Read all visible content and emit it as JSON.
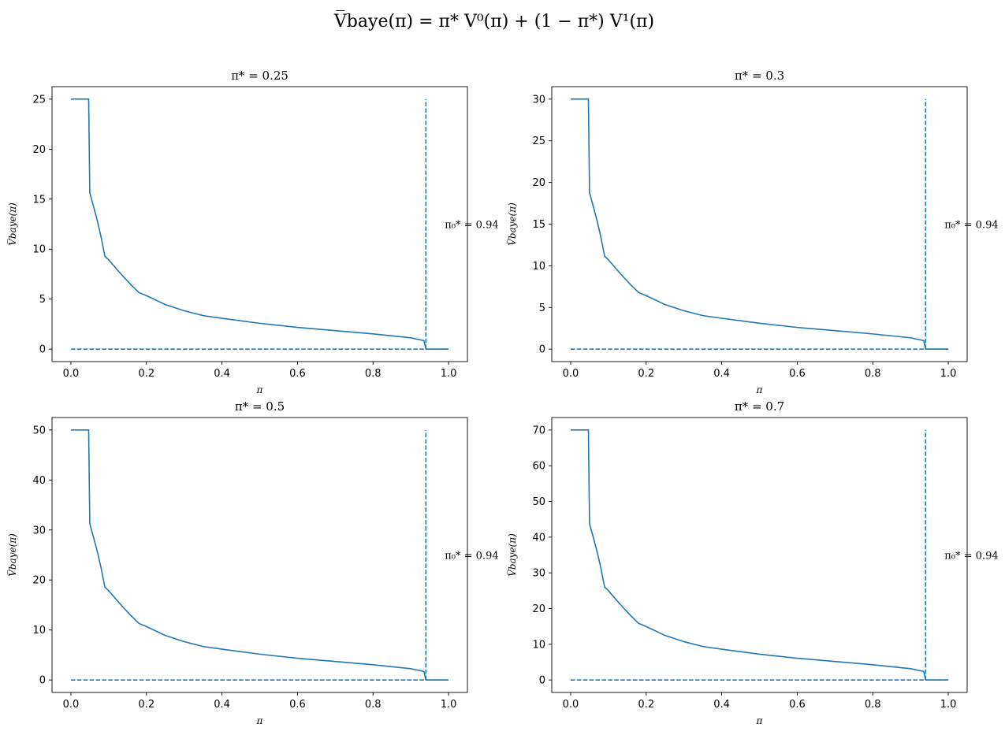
{
  "figure": {
    "title": "V̅baye(π) = π* V⁰(π) + (1 − π*) V¹(π)",
    "color": "#1f77b4"
  },
  "chart_data": [
    {
      "type": "line",
      "title": "π* = 0.25",
      "xlabel": "π",
      "ylabel": "V̅baye(π)",
      "xlim": [
        -0.05,
        1.05
      ],
      "ylim": [
        -1.25,
        26.25
      ],
      "xticks": [
        0.0,
        0.2,
        0.4,
        0.6,
        0.8,
        1.0
      ],
      "xtick_labels": [
        "0.0",
        "0.2",
        "0.4",
        "0.6",
        "0.8",
        "1.0"
      ],
      "yticks": [
        0,
        5,
        10,
        15,
        20,
        25
      ],
      "ytick_labels": [
        "0",
        "5",
        "10",
        "15",
        "20",
        "25"
      ],
      "annotation": {
        "text": "π₀* = 0.94",
        "x": 0.99,
        "y": 12.5
      },
      "series": [
        {
          "style": "solid",
          "x": [
            0.0,
            0.047,
            0.05,
            0.06,
            0.07,
            0.08,
            0.09,
            0.1,
            0.12,
            0.14,
            0.16,
            0.18,
            0.2,
            0.25,
            0.3,
            0.35,
            0.4,
            0.5,
            0.6,
            0.7,
            0.8,
            0.9,
            0.935,
            0.94,
            1.0
          ],
          "y": [
            25.0,
            25.0,
            15.63,
            14.26,
            12.84,
            11.2,
            9.29,
            8.93,
            8.05,
            7.2,
            6.4,
            5.66,
            5.35,
            4.45,
            3.83,
            3.35,
            3.08,
            2.58,
            2.17,
            1.85,
            1.52,
            1.13,
            0.85,
            0.0,
            0.0
          ]
        },
        {
          "style": "dashed",
          "x": [
            0.0,
            1.0
          ],
          "y": [
            0.0,
            0.0
          ]
        },
        {
          "style": "dashed",
          "x": [
            0.94,
            0.94
          ],
          "y": [
            0.0,
            25.0
          ]
        }
      ]
    },
    {
      "type": "line",
      "title": "π* = 0.3",
      "xlabel": "π",
      "ylabel": "V̅baye(π)",
      "xlim": [
        -0.05,
        1.05
      ],
      "ylim": [
        -1.5,
        31.5
      ],
      "xticks": [
        0.0,
        0.2,
        0.4,
        0.6,
        0.8,
        1.0
      ],
      "xtick_labels": [
        "0.0",
        "0.2",
        "0.4",
        "0.6",
        "0.8",
        "1.0"
      ],
      "yticks": [
        0,
        5,
        10,
        15,
        20,
        25,
        30
      ],
      "ytick_labels": [
        "0",
        "5",
        "10",
        "15",
        "20",
        "25",
        "30"
      ],
      "annotation": {
        "text": "π₀* = 0.94",
        "x": 0.99,
        "y": 15.0
      },
      "series": [
        {
          "style": "solid",
          "x": [
            0.0,
            0.047,
            0.05,
            0.06,
            0.07,
            0.08,
            0.09,
            0.1,
            0.12,
            0.14,
            0.16,
            0.18,
            0.2,
            0.25,
            0.3,
            0.35,
            0.4,
            0.5,
            0.6,
            0.7,
            0.8,
            0.9,
            0.935,
            0.94,
            1.0
          ],
          "y": [
            30.0,
            30.0,
            18.76,
            17.11,
            15.41,
            13.44,
            11.15,
            10.72,
            9.66,
            8.64,
            7.68,
            6.79,
            6.42,
            5.34,
            4.6,
            4.02,
            3.7,
            3.1,
            2.6,
            2.22,
            1.82,
            1.36,
            1.02,
            0.0,
            0.0
          ]
        },
        {
          "style": "dashed",
          "x": [
            0.0,
            1.0
          ],
          "y": [
            0.0,
            0.0
          ]
        },
        {
          "style": "dashed",
          "x": [
            0.94,
            0.94
          ],
          "y": [
            0.0,
            30.0
          ]
        }
      ]
    },
    {
      "type": "line",
      "title": "π* = 0.5",
      "xlabel": "π",
      "ylabel": "V̅baye(π)",
      "xlim": [
        -0.05,
        1.05
      ],
      "ylim": [
        -2.5,
        52.5
      ],
      "xticks": [
        0.0,
        0.2,
        0.4,
        0.6,
        0.8,
        1.0
      ],
      "xtick_labels": [
        "0.0",
        "0.2",
        "0.4",
        "0.6",
        "0.8",
        "1.0"
      ],
      "yticks": [
        0,
        10,
        20,
        30,
        40,
        50
      ],
      "ytick_labels": [
        "0",
        "10",
        "20",
        "30",
        "40",
        "50"
      ],
      "annotation": {
        "text": "π₀* = 0.94",
        "x": 0.99,
        "y": 25.0
      },
      "series": [
        {
          "style": "solid",
          "x": [
            0.0,
            0.047,
            0.05,
            0.06,
            0.07,
            0.08,
            0.09,
            0.1,
            0.12,
            0.14,
            0.16,
            0.18,
            0.2,
            0.25,
            0.3,
            0.35,
            0.4,
            0.5,
            0.6,
            0.7,
            0.8,
            0.9,
            0.935,
            0.94,
            1.0
          ],
          "y": [
            50.0,
            50.0,
            31.26,
            28.52,
            25.68,
            22.4,
            18.58,
            17.86,
            16.1,
            14.4,
            12.8,
            11.32,
            10.7,
            8.9,
            7.66,
            6.7,
            6.16,
            5.16,
            4.34,
            3.7,
            3.04,
            2.26,
            1.7,
            0.0,
            0.0
          ]
        },
        {
          "style": "dashed",
          "x": [
            0.0,
            1.0
          ],
          "y": [
            0.0,
            0.0
          ]
        },
        {
          "style": "dashed",
          "x": [
            0.94,
            0.94
          ],
          "y": [
            0.0,
            50.0
          ]
        }
      ]
    },
    {
      "type": "line",
      "title": "π* = 0.7",
      "xlabel": "π",
      "ylabel": "V̅baye(π)",
      "xlim": [
        -0.05,
        1.05
      ],
      "ylim": [
        -3.5,
        73.5
      ],
      "xticks": [
        0.0,
        0.2,
        0.4,
        0.6,
        0.8,
        1.0
      ],
      "xtick_labels": [
        "0.0",
        "0.2",
        "0.4",
        "0.6",
        "0.8",
        "1.0"
      ],
      "yticks": [
        0,
        10,
        20,
        30,
        40,
        50,
        60,
        70
      ],
      "ytick_labels": [
        "0",
        "10",
        "20",
        "30",
        "40",
        "50",
        "60",
        "70"
      ],
      "annotation": {
        "text": "π₀* = 0.94",
        "x": 0.99,
        "y": 35.0
      },
      "series": [
        {
          "style": "solid",
          "x": [
            0.0,
            0.047,
            0.05,
            0.06,
            0.07,
            0.08,
            0.09,
            0.1,
            0.12,
            0.14,
            0.16,
            0.18,
            0.2,
            0.25,
            0.3,
            0.35,
            0.4,
            0.5,
            0.6,
            0.7,
            0.8,
            0.9,
            0.935,
            0.94,
            1.0
          ],
          "y": [
            70.0,
            70.0,
            43.76,
            39.93,
            35.95,
            31.36,
            26.01,
            25.0,
            22.54,
            20.16,
            17.92,
            15.85,
            14.98,
            12.46,
            10.72,
            9.38,
            8.62,
            7.22,
            6.08,
            5.18,
            4.26,
            3.16,
            2.38,
            0.0,
            0.0
          ]
        },
        {
          "style": "dashed",
          "x": [
            0.0,
            1.0
          ],
          "y": [
            0.0,
            0.0
          ]
        },
        {
          "style": "dashed",
          "x": [
            0.94,
            0.94
          ],
          "y": [
            0.0,
            70.0
          ]
        }
      ]
    }
  ]
}
